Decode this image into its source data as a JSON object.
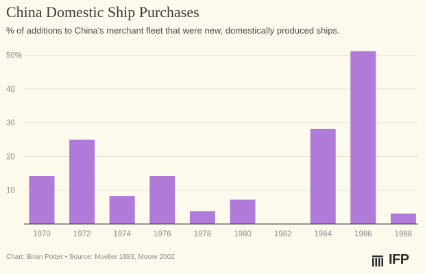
{
  "chart_data": {
    "type": "bar",
    "title": "China Domestic Ship Purchases",
    "subtitle": "% of additions to China's merchant fleet that were new, domestically produced ships.",
    "xlabel": "",
    "ylabel": "",
    "categories": [
      "1970",
      "1972",
      "1974",
      "1976",
      "1978",
      "1980",
      "1982",
      "1984",
      "1986",
      "1988"
    ],
    "values": [
      14.2,
      25.0,
      8.3,
      14.2,
      3.8,
      7.2,
      0,
      28.2,
      51.2,
      3.1
    ],
    "ylim": [
      0,
      55
    ],
    "yticks": [
      10,
      20,
      30,
      40,
      50
    ],
    "ytick_labels": [
      "10",
      "20",
      "30",
      "40",
      "50%"
    ],
    "bar_color": "#b07bd8",
    "grid": true
  },
  "footer": {
    "credit": "Chart: Brian Potter • Source: Mueller 1983, Moore 2002"
  },
  "logo": {
    "text": "IFP"
  }
}
